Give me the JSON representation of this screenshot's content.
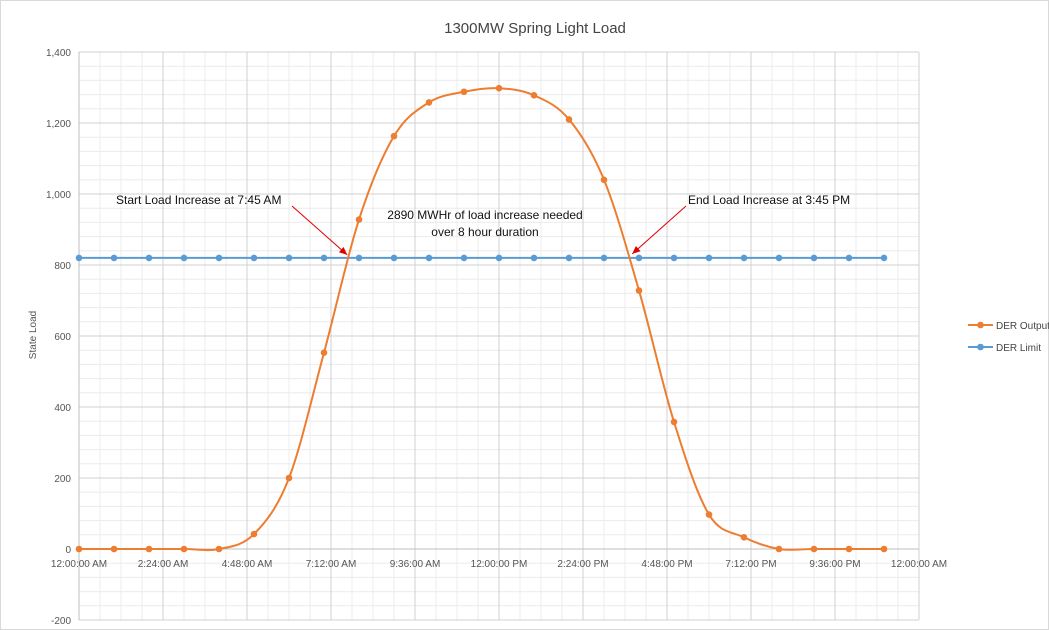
{
  "chart_data": {
    "type": "line",
    "title": "1300MW Spring Light Load",
    "xlabel": "",
    "ylabel": "State Load",
    "ylim": [
      -200,
      1400
    ],
    "yticks": [
      -200,
      0,
      200,
      400,
      600,
      800,
      1000,
      1200,
      1400
    ],
    "ytick_labels": [
      "-200",
      "0",
      "200",
      "400",
      "600",
      "800",
      "1,000",
      "1,200",
      "1,400"
    ],
    "xlim": [
      0,
      24
    ],
    "xticks": [
      0,
      2.4,
      4.8,
      7.2,
      9.6,
      12,
      14.4,
      16.8,
      19.2,
      21.6,
      24
    ],
    "xtick_labels": [
      "12:00:00 AM",
      "2:24:00 AM",
      "4:48:00 AM",
      "7:12:00 AM",
      "9:36:00 AM",
      "12:00:00 PM",
      "2:24:00 PM",
      "4:48:00 PM",
      "7:12:00 PM",
      "9:36:00 PM",
      "12:00:00 AM"
    ],
    "grid": true,
    "legend_position": "right",
    "series": [
      {
        "name": "DER Output",
        "color": "#ED7D31",
        "x": [
          0,
          1,
          2,
          3,
          4,
          5,
          6,
          7,
          8,
          9,
          10,
          11,
          12,
          13,
          14,
          15,
          16,
          17,
          18,
          19,
          20,
          21,
          22,
          23
        ],
        "values": [
          0,
          0,
          0,
          0,
          0,
          42,
          200,
          553,
          928,
          1163,
          1258,
          1288,
          1298,
          1278,
          1210,
          1040,
          728,
          358,
          97,
          33,
          0,
          0,
          0,
          0
        ]
      },
      {
        "name": "DER Limit",
        "color": "#5B9BD5",
        "x": [
          0,
          1,
          2,
          3,
          4,
          5,
          6,
          7,
          8,
          9,
          10,
          11,
          12,
          13,
          14,
          15,
          16,
          17,
          18,
          19,
          20,
          21,
          22,
          23
        ],
        "values": [
          820,
          820,
          820,
          820,
          820,
          820,
          820,
          820,
          820,
          820,
          820,
          820,
          820,
          820,
          820,
          820,
          820,
          820,
          820,
          820,
          820,
          820,
          820,
          820
        ]
      }
    ],
    "annotations": [
      {
        "text": "Start Load Increase at 7:45 AM",
        "arrow_to_x": 7.75,
        "arrow_to_y": 820
      },
      {
        "text": "2890 MWHr of load increase needed",
        "line2": "over 8 hour duration"
      },
      {
        "text": "End Load Increase at 3:45 PM",
        "arrow_to_x": 15.75,
        "arrow_to_y": 820
      }
    ],
    "annotation_color": "#E00000"
  }
}
